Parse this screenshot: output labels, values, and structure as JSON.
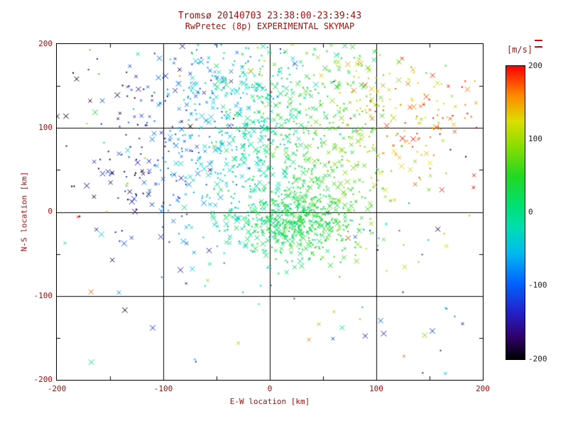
{
  "colors": {
    "text": "#9e0e0e",
    "colorbar_text": "#1c1c1c",
    "axis": "#000000",
    "background": "#ffffff"
  },
  "chart_data": {
    "type": "scatter",
    "title": "Tromsø 20140703 23:38:00-23:39:43",
    "subtitle": "RwPretec (8p) EXPERIMENTAL SKYMAP",
    "xlabel": "E-W location [km]",
    "ylabel": "N-S location [km]",
    "xlim": [
      -200,
      200
    ],
    "ylim": [
      -200,
      200
    ],
    "xtick_labels": [
      "-200",
      "-100",
      "0",
      "100",
      "200"
    ],
    "ytick_labels": [
      "200",
      "100",
      "0",
      "-100",
      "-200"
    ],
    "grid_values": [
      -100,
      0,
      100
    ],
    "minor_tick_values": [
      -150,
      -50,
      50,
      150
    ],
    "grid": true,
    "legend_position": "none",
    "colorbar": {
      "label": "[m/s]",
      "min": -200,
      "max": 200,
      "tick_labels": [
        "200",
        "100",
        "0",
        "-100",
        "-200"
      ],
      "tick_values": [
        200,
        100,
        0,
        -100,
        -200
      ],
      "stops": [
        [
          -200,
          "#000000"
        ],
        [
          -170,
          "#30006a"
        ],
        [
          -135,
          "#2222cc"
        ],
        [
          -95,
          "#0066ff"
        ],
        [
          -55,
          "#00bbee"
        ],
        [
          -20,
          "#00ddb0"
        ],
        [
          10,
          "#00e070"
        ],
        [
          50,
          "#22d822"
        ],
        [
          90,
          "#88dd00"
        ],
        [
          125,
          "#dddd00"
        ],
        [
          160,
          "#ff8800"
        ],
        [
          200,
          "#ff0000"
        ]
      ]
    },
    "marker_types": [
      "cross",
      "dot"
    ],
    "cross_fraction": 0.45,
    "seed": 20140703,
    "point_clusters": [
      {
        "name": "main-cloud",
        "n": 850,
        "cx": -5,
        "cy": 75,
        "sx": 70,
        "sy": 55,
        "v_base": 0,
        "v_x_slope": 0.95,
        "v_noise": 30
      },
      {
        "name": "dense-core",
        "n": 520,
        "cx": 25,
        "cy": -12,
        "sx": 30,
        "sy": 24,
        "v_base": 20,
        "v_x_slope": 0.4,
        "v_noise": 18
      },
      {
        "name": "upper-band",
        "n": 280,
        "cx": 10,
        "cy": 152,
        "sx": 88,
        "sy": 30,
        "v_base": 0,
        "v_x_slope": 1.1,
        "v_noise": 55
      },
      {
        "name": "right-red",
        "n": 55,
        "cx": 130,
        "cy": 110,
        "sx": 26,
        "sy": 22,
        "v_base": 165,
        "v_x_slope": 0,
        "v_noise": 30
      },
      {
        "name": "left-dark",
        "n": 35,
        "cx": -130,
        "cy": 70,
        "sx": 30,
        "sy": 55,
        "v_base": -160,
        "v_x_slope": 0,
        "v_noise": 35
      },
      {
        "name": "sparse-uniform",
        "n": 110,
        "uniform": true
      }
    ]
  }
}
